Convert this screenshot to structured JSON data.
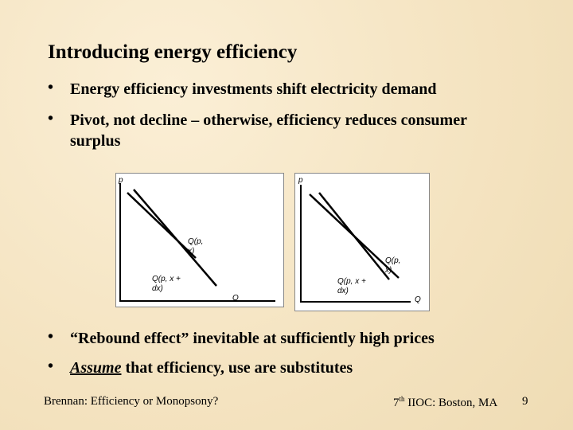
{
  "title": "Introducing energy efficiency",
  "bullets": [
    {
      "text": "Energy efficiency investments shift electricity demand"
    },
    {
      "text": "Pivot, not decline – otherwise, efficiency reduces consumer surplus"
    },
    {
      "text": "“Rebound effect” inevitable at sufficiently high prices"
    },
    {
      "emphasis": "Assume",
      "text": " that efficiency, use are substitutes"
    }
  ],
  "diagrams": [
    {
      "y_axis": "p",
      "x_axis": "Q",
      "curve_original": "Q(p, x)",
      "curve_new": "Q(p, x + dx)"
    },
    {
      "y_axis": "p",
      "x_axis": "Q",
      "curve_original": "Q(p, x)",
      "curve_new": "Q(p, x + dx)"
    }
  ],
  "footer": {
    "left": "Brennan: Efficiency or Monopsony?",
    "right_number": "7",
    "right_suffix": "th",
    "right_text": " IIOC: Boston, MA",
    "page": "9"
  }
}
